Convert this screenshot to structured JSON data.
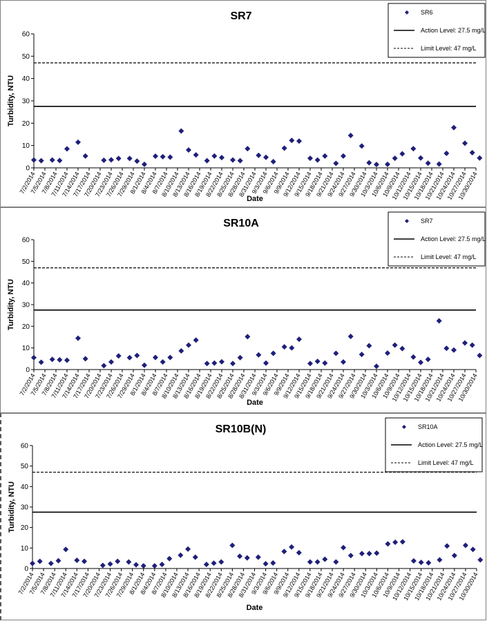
{
  "x_dates": [
    "7/2/2014",
    "7/5/2014",
    "7/8/2014",
    "7/11/2014",
    "7/14/2014",
    "7/17/2014",
    "7/20/2014",
    "7/23/2014",
    "7/26/2014",
    "7/29/2014",
    "8/1/2014",
    "8/4/2014",
    "8/7/2014",
    "8/10/2014",
    "8/13/2014",
    "8/16/2014",
    "8/19/2014",
    "8/22/2014",
    "8/25/2014",
    "8/28/2014",
    "8/31/2014",
    "9/3/2014",
    "9/6/2014",
    "9/9/2014",
    "9/12/2014",
    "9/15/2014",
    "9/18/2014",
    "9/21/2014",
    "9/24/2014",
    "9/27/2014",
    "9/30/2014",
    "10/3/2014",
    "10/6/2014",
    "10/9/2014",
    "10/12/2014",
    "10/15/2014",
    "10/18/2014",
    "10/21/2014",
    "10/24/2014",
    "10/27/2014",
    "10/30/2014"
  ],
  "colors": {
    "marker": "#1f1f7a",
    "line": "#000000",
    "border": "#808080"
  },
  "chart_data": [
    {
      "type": "scatter",
      "title": "SR7",
      "xlabel": "Date",
      "ylabel": "Turbidity, NTU",
      "ylim": [
        0,
        60
      ],
      "yticks": [
        0,
        10,
        20,
        30,
        40,
        50,
        60
      ],
      "legend_position": "top-right",
      "series": [
        {
          "name": "SR6",
          "points": [
            [
              "7/2/2014",
              3.5
            ],
            [
              "7/4/2014",
              3.2
            ],
            [
              "7/7/2014",
              3.5
            ],
            [
              "7/9/2014",
              3.3
            ],
            [
              "7/11/2014",
              8.5
            ],
            [
              "7/14/2014",
              11.5
            ],
            [
              "7/16/2014",
              5.3
            ],
            [
              "7/21/2014",
              3.4
            ],
            [
              "7/23/2014",
              3.6
            ],
            [
              "7/25/2014",
              4.2
            ],
            [
              "7/28/2014",
              4.2
            ],
            [
              "7/30/2014",
              3.0
            ],
            [
              "8/1/2014",
              1.6
            ],
            [
              "8/4/2014",
              5.2
            ],
            [
              "8/6/2014",
              5.0
            ],
            [
              "8/8/2014",
              4.8
            ],
            [
              "8/11/2014",
              16.5
            ],
            [
              "8/13/2014",
              8.0
            ],
            [
              "8/15/2014",
              5.8
            ],
            [
              "8/18/2014",
              3.2
            ],
            [
              "8/20/2014",
              5.3
            ],
            [
              "8/22/2014",
              4.6
            ],
            [
              "8/25/2014",
              3.5
            ],
            [
              "8/27/2014",
              3.2
            ],
            [
              "8/29/2014",
              8.6
            ],
            [
              "9/1/2014",
              5.6
            ],
            [
              "9/3/2014",
              4.7
            ],
            [
              "9/5/2014",
              2.8
            ],
            [
              "9/8/2014",
              8.8
            ],
            [
              "9/10/2014",
              12.3
            ],
            [
              "9/12/2014",
              12.0
            ],
            [
              "9/15/2014",
              4.3
            ],
            [
              "9/17/2014",
              3.5
            ],
            [
              "9/19/2014",
              5.3
            ],
            [
              "9/22/2014",
              2.0
            ],
            [
              "9/24/2014",
              5.3
            ],
            [
              "9/26/2014",
              14.5
            ],
            [
              "9/29/2014",
              9.8
            ],
            [
              "10/1/2014",
              2.3
            ],
            [
              "10/3/2014",
              1.5
            ],
            [
              "10/6/2014",
              1.6
            ],
            [
              "10/8/2014",
              4.3
            ],
            [
              "10/10/2014",
              6.3
            ],
            [
              "10/13/2014",
              8.6
            ],
            [
              "10/15/2014",
              4.4
            ],
            [
              "10/17/2014",
              2.1
            ],
            [
              "10/20/2014",
              1.7
            ],
            [
              "10/22/2014",
              6.5
            ],
            [
              "10/24/2014",
              18.0
            ],
            [
              "10/27/2014",
              11.0
            ],
            [
              "10/29/2014",
              6.8
            ],
            [
              "10/31/2014",
              4.4
            ]
          ]
        }
      ],
      "reference_lines": [
        {
          "label": "Action Level: 27.5 mg/L",
          "value": 27.5,
          "style": "solid"
        },
        {
          "label": "Limit Level: 47 mg/L",
          "value": 47,
          "style": "dashed"
        }
      ]
    },
    {
      "type": "scatter",
      "title": "SR10A",
      "xlabel": "Date",
      "ylabel": "Turbidity, NTU",
      "ylim": [
        0,
        60
      ],
      "yticks": [
        0,
        10,
        20,
        30,
        40,
        50,
        60
      ],
      "legend_position": "top-right",
      "series": [
        {
          "name": "SR7",
          "points": [
            [
              "7/2/2014",
              5.5
            ],
            [
              "7/4/2014",
              3.4
            ],
            [
              "7/7/2014",
              4.7
            ],
            [
              "7/9/2014",
              4.5
            ],
            [
              "7/11/2014",
              4.3
            ],
            [
              "7/14/2014",
              14.5
            ],
            [
              "7/16/2014",
              5.0
            ],
            [
              "7/21/2014",
              1.8
            ],
            [
              "7/23/2014",
              3.5
            ],
            [
              "7/25/2014",
              6.3
            ],
            [
              "7/28/2014",
              5.5
            ],
            [
              "7/30/2014",
              6.5
            ],
            [
              "8/1/2014",
              2.0
            ],
            [
              "8/4/2014",
              5.6
            ],
            [
              "8/6/2014",
              3.5
            ],
            [
              "8/8/2014",
              5.6
            ],
            [
              "8/11/2014",
              8.6
            ],
            [
              "8/13/2014",
              11.3
            ],
            [
              "8/15/2014",
              13.6
            ],
            [
              "8/18/2014",
              2.8
            ],
            [
              "8/20/2014",
              3.0
            ],
            [
              "8/22/2014",
              3.6
            ],
            [
              "8/25/2014",
              2.8
            ],
            [
              "8/27/2014",
              5.5
            ],
            [
              "8/29/2014",
              15.2
            ],
            [
              "9/1/2014",
              6.8
            ],
            [
              "9/3/2014",
              3.0
            ],
            [
              "9/5/2014",
              7.5
            ],
            [
              "9/8/2014",
              10.5
            ],
            [
              "9/10/2014",
              10.0
            ],
            [
              "9/12/2014",
              14.0
            ],
            [
              "9/15/2014",
              2.8
            ],
            [
              "9/17/2014",
              3.8
            ],
            [
              "9/19/2014",
              3.0
            ],
            [
              "9/22/2014",
              7.5
            ],
            [
              "9/24/2014",
              3.5
            ],
            [
              "9/26/2014",
              15.3
            ],
            [
              "9/29/2014",
              7.0
            ],
            [
              "10/1/2014",
              11.0
            ],
            [
              "10/3/2014",
              1.5
            ],
            [
              "10/6/2014",
              7.6
            ],
            [
              "10/8/2014",
              11.3
            ],
            [
              "10/10/2014",
              9.7
            ],
            [
              "10/13/2014",
              5.8
            ],
            [
              "10/15/2014",
              3.3
            ],
            [
              "10/17/2014",
              4.7
            ],
            [
              "10/20/2014",
              22.5
            ],
            [
              "10/22/2014",
              9.8
            ],
            [
              "10/24/2014",
              9.0
            ],
            [
              "10/27/2014",
              12.3
            ],
            [
              "10/29/2014",
              11.3
            ],
            [
              "10/31/2014",
              6.5
            ]
          ]
        }
      ],
      "reference_lines": [
        {
          "label": "Action Level: 27.5 mg/L",
          "value": 27.5,
          "style": "solid"
        },
        {
          "label": "Limit Level: 47 mg/L",
          "value": 47,
          "style": "dashed"
        }
      ]
    },
    {
      "type": "scatter",
      "title": "SR10B(N)",
      "xlabel": "Date",
      "ylabel": "Turbidity, NTU",
      "ylim": [
        0,
        60
      ],
      "yticks": [
        0,
        10,
        20,
        30,
        40,
        50,
        60
      ],
      "legend_position": "top-right",
      "series": [
        {
          "name": "SR10A",
          "points": [
            [
              "7/2/2014",
              2.5
            ],
            [
              "7/4/2014",
              3.5
            ],
            [
              "7/7/2014",
              2.5
            ],
            [
              "7/9/2014",
              3.8
            ],
            [
              "7/11/2014",
              9.3
            ],
            [
              "7/14/2014",
              4.0
            ],
            [
              "7/16/2014",
              3.5
            ],
            [
              "7/21/2014",
              1.5
            ],
            [
              "7/23/2014",
              2.2
            ],
            [
              "7/25/2014",
              3.5
            ],
            [
              "7/28/2014",
              3.2
            ],
            [
              "7/30/2014",
              1.8
            ],
            [
              "8/1/2014",
              1.3
            ],
            [
              "8/4/2014",
              1.3
            ],
            [
              "8/6/2014",
              2.0
            ],
            [
              "8/8/2014",
              4.8
            ],
            [
              "8/11/2014",
              6.5
            ],
            [
              "8/13/2014",
              9.5
            ],
            [
              "8/15/2014",
              5.5
            ],
            [
              "8/18/2014",
              2.0
            ],
            [
              "8/20/2014",
              2.6
            ],
            [
              "8/22/2014",
              3.2
            ],
            [
              "8/25/2014",
              11.3
            ],
            [
              "8/27/2014",
              6.0
            ],
            [
              "8/29/2014",
              5.2
            ],
            [
              "9/1/2014",
              5.5
            ],
            [
              "9/3/2014",
              2.3
            ],
            [
              "9/5/2014",
              2.7
            ],
            [
              "9/8/2014",
              8.3
            ],
            [
              "9/10/2014",
              10.5
            ],
            [
              "9/12/2014",
              7.7
            ],
            [
              "9/15/2014",
              3.2
            ],
            [
              "9/17/2014",
              3.2
            ],
            [
              "9/19/2014",
              4.5
            ],
            [
              "9/22/2014",
              3.2
            ],
            [
              "9/24/2014",
              10.2
            ],
            [
              "9/26/2014",
              6.3
            ],
            [
              "9/29/2014",
              7.3
            ],
            [
              "10/1/2014",
              7.3
            ],
            [
              "10/3/2014",
              7.5
            ],
            [
              "10/6/2014",
              12.0
            ],
            [
              "10/8/2014",
              12.8
            ],
            [
              "10/10/2014",
              13.0
            ],
            [
              "10/13/2014",
              3.7
            ],
            [
              "10/15/2014",
              3.0
            ],
            [
              "10/17/2014",
              2.8
            ],
            [
              "10/20/2014",
              4.2
            ],
            [
              "10/22/2014",
              11.0
            ],
            [
              "10/24/2014",
              6.3
            ],
            [
              "10/27/2014",
              11.3
            ],
            [
              "10/29/2014",
              9.3
            ],
            [
              "10/31/2014",
              4.2
            ]
          ]
        }
      ],
      "reference_lines": [
        {
          "label": "Action Level: 27.5 mg/L",
          "value": 27.5,
          "style": "solid"
        },
        {
          "label": "Limit Level: 47 mg/L",
          "value": 47,
          "style": "dashed"
        }
      ]
    }
  ]
}
